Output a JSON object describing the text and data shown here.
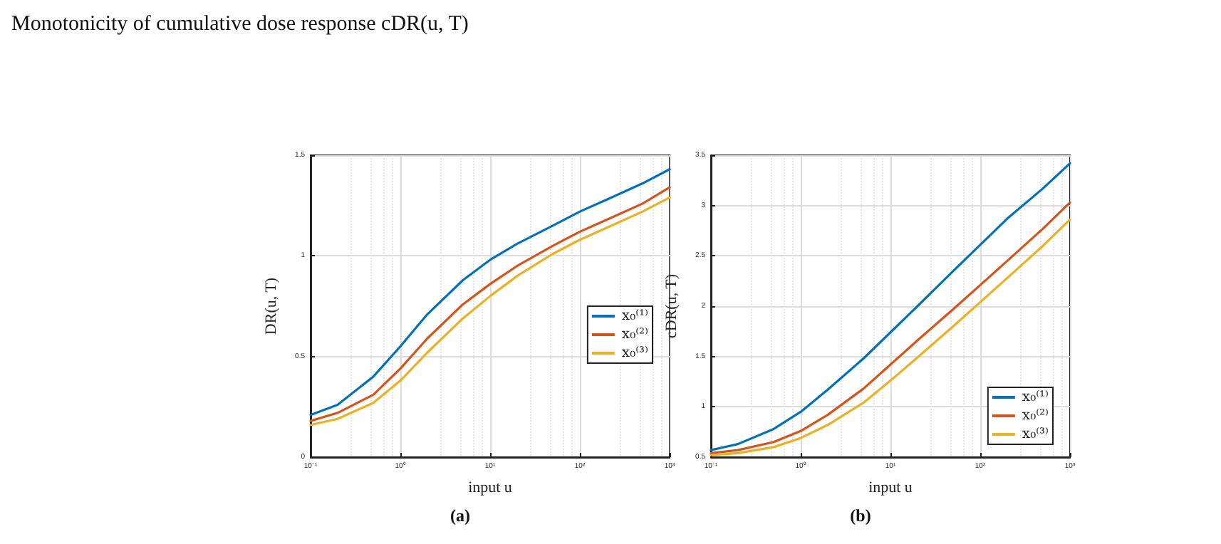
{
  "chart_data": [
    {
      "type": "line",
      "title": "Monotonicity of cumulative dose response cDR(u, T)",
      "xlabel": "input u",
      "ylabel": "DR(u, T)",
      "annotations": [
        "(a)"
      ],
      "log": "x",
      "grid": true,
      "legend": "right",
      "marker": "none",
      "line_style": "solid",
      "x": [
        0.1,
        0.2,
        0.5,
        1,
        2,
        5,
        10,
        20,
        50,
        100,
        200,
        500,
        1000
      ],
      "xlim": [
        0.1,
        1000
      ],
      "xticks": [
        {
          "value": 0.1,
          "label": "10⁻¹"
        },
        {
          "value": 1,
          "label": "10⁰"
        },
        {
          "value": 10,
          "label": "10¹"
        },
        {
          "value": 100,
          "label": "10²"
        },
        {
          "value": 1000,
          "label": "10³"
        }
      ],
      "ylim": [
        0,
        1.5
      ],
      "yticks": [
        0,
        0.5,
        1,
        1.5
      ],
      "series": [
        {
          "name": "x₀⁽¹⁾",
          "color": "#0072bd",
          "values": [
            0.21,
            0.26,
            0.4,
            0.55,
            0.71,
            0.88,
            0.98,
            1.06,
            1.15,
            1.22,
            1.28,
            1.36,
            1.43
          ]
        },
        {
          "name": "x₀⁽²⁾",
          "color": "#d95319",
          "values": [
            0.18,
            0.22,
            0.31,
            0.44,
            0.59,
            0.76,
            0.86,
            0.95,
            1.05,
            1.12,
            1.18,
            1.26,
            1.34
          ]
        },
        {
          "name": "x₀⁽³⁾",
          "color": "#edb120",
          "values": [
            0.16,
            0.19,
            0.27,
            0.38,
            0.52,
            0.69,
            0.8,
            0.9,
            1.01,
            1.08,
            1.14,
            1.22,
            1.29
          ]
        }
      ]
    },
    {
      "type": "line",
      "xlabel": "input u",
      "ylabel": "cDR(u, T)",
      "annotations": [
        "(b)"
      ],
      "log": "x",
      "grid": true,
      "legend": "bottom right",
      "marker": "none",
      "line_style": "solid",
      "x": [
        0.1,
        0.2,
        0.5,
        1,
        2,
        5,
        10,
        20,
        50,
        100,
        200,
        500,
        1000
      ],
      "xlim": [
        0.1,
        1000
      ],
      "xticks": [
        {
          "value": 0.1,
          "label": "10⁻¹"
        },
        {
          "value": 1,
          "label": "10⁰"
        },
        {
          "value": 10,
          "label": "10¹"
        },
        {
          "value": 100,
          "label": "10²"
        },
        {
          "value": 1000,
          "label": "10³"
        }
      ],
      "ylim": [
        0.5,
        3.5
      ],
      "yticks": [
        0.5,
        1,
        1.5,
        2,
        2.5,
        3,
        3.5
      ],
      "series": [
        {
          "name": "x₀⁽¹⁾",
          "color": "#0072bd",
          "values": [
            0.57,
            0.63,
            0.78,
            0.95,
            1.17,
            1.48,
            1.74,
            2.0,
            2.35,
            2.61,
            2.87,
            3.17,
            3.42
          ]
        },
        {
          "name": "x₀⁽²⁾",
          "color": "#d95319",
          "values": [
            0.54,
            0.57,
            0.65,
            0.76,
            0.92,
            1.18,
            1.42,
            1.66,
            1.97,
            2.21,
            2.45,
            2.77,
            3.03
          ]
        },
        {
          "name": "x₀⁽³⁾",
          "color": "#edb120",
          "values": [
            0.52,
            0.54,
            0.6,
            0.69,
            0.82,
            1.04,
            1.26,
            1.49,
            1.8,
            2.04,
            2.28,
            2.6,
            2.86
          ]
        }
      ]
    }
  ]
}
